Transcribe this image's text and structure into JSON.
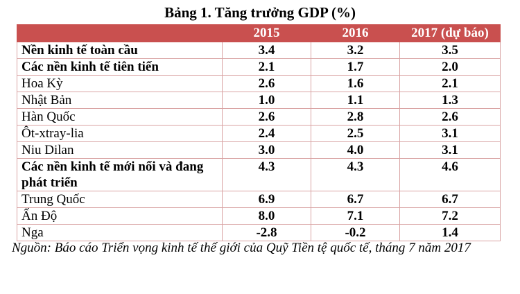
{
  "title": "Bảng 1. Tăng trưởng GDP (%)",
  "table": {
    "headers": [
      "",
      "2015",
      "2016",
      "2017 (dự báo)"
    ],
    "rows": [
      {
        "label": "Nền kinh tế toàn cầu",
        "bold": true,
        "values": [
          "3.4",
          "3.2",
          "3.5"
        ]
      },
      {
        "label": "Các nền kinh tế tiên tiến",
        "bold": true,
        "values": [
          "2.1",
          "1.7",
          "2.0"
        ]
      },
      {
        "label": "Hoa Kỳ",
        "bold": false,
        "values": [
          "2.6",
          "1.6",
          "2.1"
        ]
      },
      {
        "label": "Nhật Bản",
        "bold": false,
        "values": [
          "1.0",
          "1.1",
          "1.3"
        ]
      },
      {
        "label": "Hàn Quốc",
        "bold": false,
        "values": [
          "2.6",
          "2.8",
          "2.6"
        ]
      },
      {
        "label": "Ôt-xtray-lia",
        "bold": false,
        "values": [
          "2.4",
          "2.5",
          "3.1"
        ]
      },
      {
        "label": "Niu Dilan",
        "bold": false,
        "values": [
          "3.0",
          "4.0",
          "3.1"
        ]
      },
      {
        "label": "Các nền kinh tế mới nổi và đang phát triển",
        "bold": true,
        "values": [
          "4.3",
          "4.3",
          "4.6"
        ]
      },
      {
        "label": "Trung Quốc",
        "bold": false,
        "values": [
          "6.9",
          "6.7",
          "6.7"
        ]
      },
      {
        "label": "Ấn Độ",
        "bold": false,
        "values": [
          "8.0",
          "7.1",
          "7.2"
        ]
      },
      {
        "label": "Nga",
        "bold": false,
        "values": [
          "-2.8",
          "-0.2",
          "1.4"
        ]
      }
    ]
  },
  "source": "Nguồn: Báo cáo Triển vọng kinh tế thế giới của Quỹ Tiền tệ quốc tế, tháng 7 năm 2017",
  "colors": {
    "header_bg": "#c9504f",
    "border": "#d9a3a3"
  }
}
